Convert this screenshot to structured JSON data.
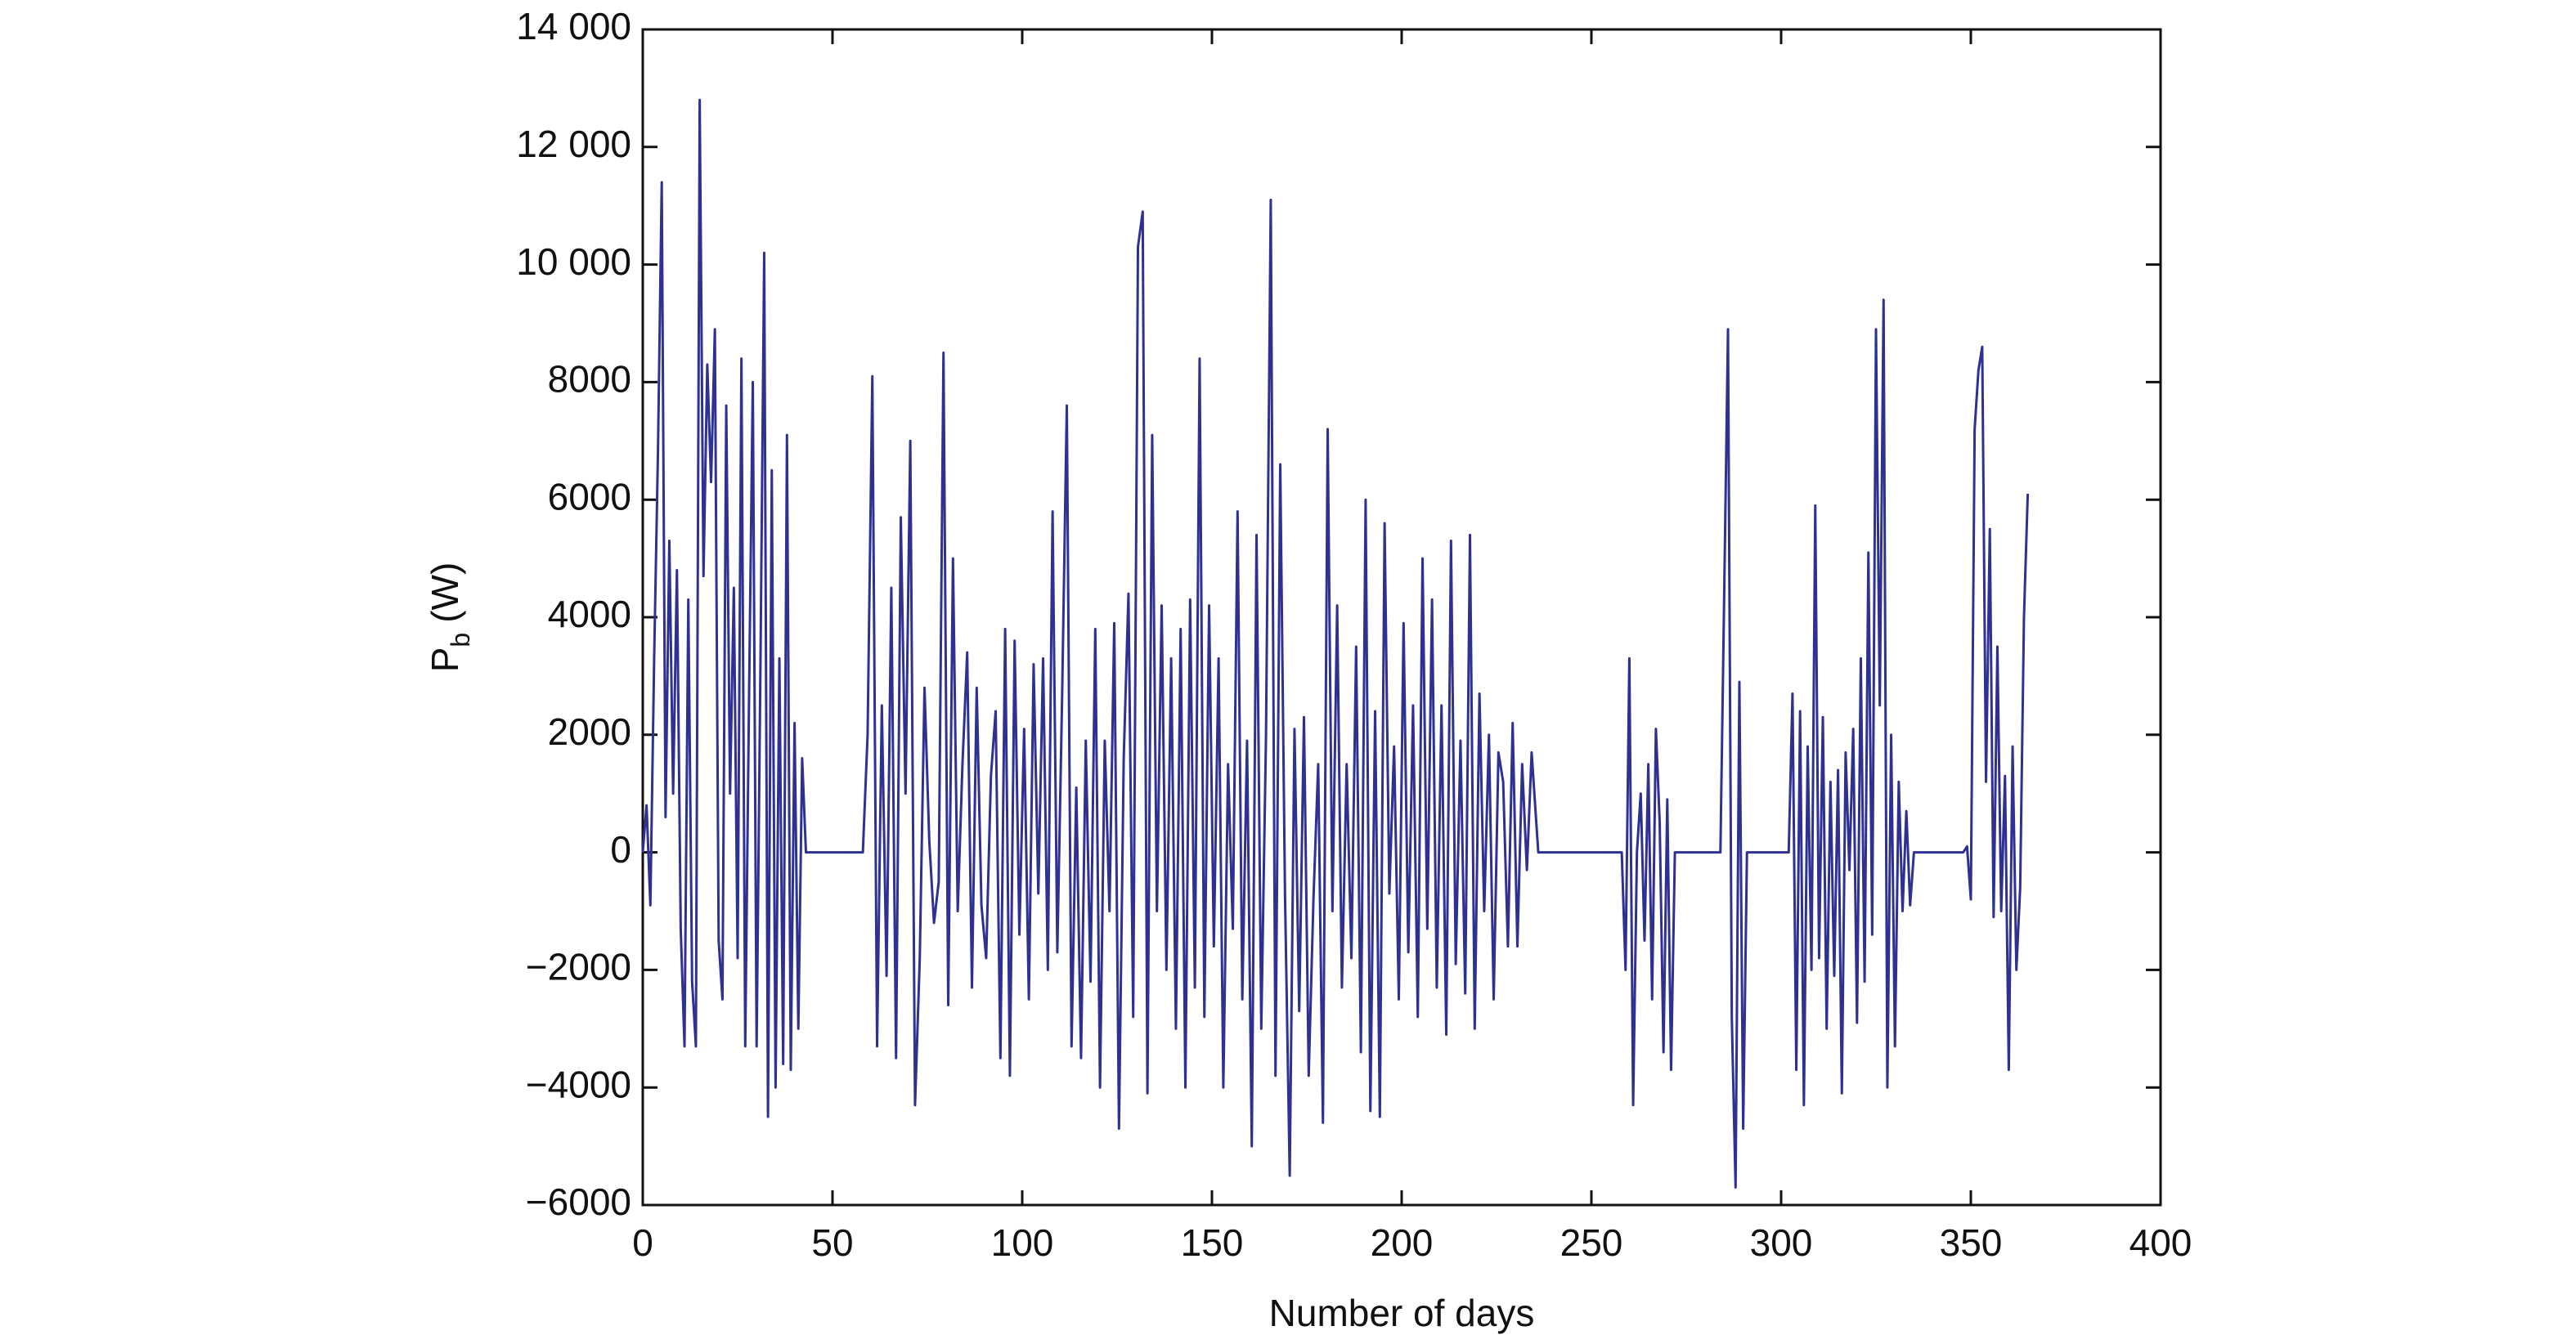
{
  "chart_data": {
    "type": "line",
    "xlabel": "Number of days",
    "ylabel": {
      "main": "P",
      "sub": "b",
      "unit": "(W)"
    },
    "xlim": [
      0,
      400
    ],
    "xticks": [
      0,
      50,
      100,
      150,
      200,
      250,
      300,
      350,
      400
    ],
    "ylim": [
      -6000,
      14000
    ],
    "yticks": [
      {
        "value": -6000,
        "label": "−6000"
      },
      {
        "value": -4000,
        "label": "−4000"
      },
      {
        "value": -2000,
        "label": "−2000"
      },
      0,
      2000,
      4000,
      6000,
      8000,
      {
        "value": 10000,
        "label": "10 000"
      },
      {
        "value": 12000,
        "label": "12 000"
      },
      {
        "value": 14000,
        "label": "14 000"
      }
    ],
    "grid": false,
    "x": [
      0,
      1,
      2,
      3,
      4,
      5,
      6,
      7,
      8,
      9,
      10,
      11,
      12,
      13,
      14,
      15,
      16,
      17,
      18,
      19,
      20,
      21,
      22,
      23,
      24,
      25,
      26,
      27,
      28,
      29,
      30,
      31,
      32,
      33,
      34,
      35,
      36,
      37,
      38,
      39,
      40,
      41,
      42,
      43,
      58,
      59.25,
      60.5,
      61.75,
      63,
      64.25,
      65.5,
      66.75,
      68,
      69.25,
      70.5,
      71.75,
      73,
      74.25,
      75.5,
      76.75,
      78,
      79.25,
      80.5,
      81.75,
      83,
      84.25,
      85.5,
      86.75,
      88,
      89.25,
      90.5,
      91.75,
      93,
      94.25,
      95.5,
      96.75,
      98,
      99.25,
      100.5,
      101.75,
      103,
      104.25,
      105.5,
      106.75,
      108,
      109.25,
      110.5,
      111.75,
      113,
      114.25,
      115.5,
      116.75,
      118,
      119.25,
      120.5,
      121.75,
      123,
      124.25,
      125.5,
      126.75,
      128,
      129.25,
      130.5,
      131.75,
      133,
      134.25,
      135.5,
      136.75,
      138,
      139.25,
      140.5,
      141.75,
      143,
      144.25,
      145.5,
      146.75,
      148,
      149.25,
      150.5,
      151.75,
      153,
      154.25,
      155.5,
      156.75,
      158,
      159.25,
      160.5,
      161.75,
      163,
      164.25,
      165.5,
      166.75,
      168,
      169.25,
      170.5,
      171.75,
      173,
      174.25,
      175.5,
      176.75,
      178,
      179.25,
      180.5,
      181.75,
      183,
      184.25,
      185.5,
      186.75,
      188,
      189.25,
      190.5,
      191.75,
      193,
      194.25,
      195.5,
      196.75,
      198,
      199.25,
      200.5,
      201.75,
      203,
      204.25,
      205.5,
      206.75,
      208,
      209.25,
      210.5,
      211.75,
      213,
      214.25,
      215.5,
      216.75,
      218,
      219.25,
      220.5,
      221.75,
      223,
      224.25,
      225.5,
      226.75,
      228,
      229.25,
      230.5,
      231.75,
      233,
      234.25,
      236,
      258,
      259,
      260,
      261,
      262,
      263,
      264,
      265,
      266,
      267,
      268,
      269,
      270,
      271,
      272,
      284,
      285,
      286,
      287,
      288,
      289,
      290,
      291,
      302,
      303,
      304,
      305,
      306,
      307,
      308,
      309,
      310,
      311,
      312,
      313,
      314,
      315,
      316,
      317,
      318,
      319,
      320,
      321,
      322,
      323,
      324,
      325,
      326,
      327,
      328,
      329,
      330,
      331,
      332,
      333,
      334,
      335,
      348,
      349,
      350,
      351,
      352,
      353,
      354,
      355,
      356,
      357,
      358,
      359,
      360,
      361,
      362,
      363,
      364,
      365
    ],
    "series": [
      {
        "name": "P_b",
        "color": "#2e3192",
        "values": [
          0,
          800,
          -900,
          3300,
          6800,
          11400,
          600,
          5300,
          1000,
          4800,
          -1300,
          -3300,
          4300,
          -2200,
          -3300,
          12800,
          4700,
          8300,
          6300,
          8900,
          -1500,
          -2500,
          7600,
          1000,
          4500,
          -1800,
          8400,
          -3300,
          2600,
          8000,
          -3300,
          3100,
          10200,
          -4500,
          6500,
          -4000,
          3300,
          -3600,
          7100,
          -3700,
          2200,
          -3000,
          1600,
          0,
          0,
          2000,
          8100,
          -3300,
          2500,
          -2100,
          4500,
          -3500,
          5700,
          1000,
          7000,
          -4300,
          -1800,
          2800,
          200,
          -1200,
          -500,
          8500,
          -2600,
          5000,
          -1000,
          1500,
          3400,
          -2300,
          2800,
          -900,
          -1800,
          1300,
          2400,
          -3500,
          3800,
          -3800,
          3600,
          -1400,
          2100,
          -2500,
          3200,
          -700,
          3300,
          -2000,
          5800,
          -1700,
          2600,
          7600,
          -3300,
          1100,
          -3500,
          1900,
          -2200,
          3800,
          -4000,
          1900,
          -1000,
          3900,
          -4700,
          1600,
          4400,
          -2800,
          10300,
          10900,
          -4100,
          7100,
          -1000,
          4200,
          -2000,
          3300,
          -3000,
          3800,
          -4000,
          4300,
          -2300,
          8400,
          -2800,
          4200,
          -1600,
          3300,
          -4000,
          1500,
          -1300,
          5800,
          -2500,
          1900,
          -5000,
          5400,
          -3000,
          2000,
          11100,
          -3800,
          6600,
          -700,
          -5500,
          2100,
          -2700,
          2300,
          -3800,
          -800,
          1500,
          -4600,
          7200,
          -1000,
          4200,
          -2300,
          1500,
          -1800,
          3500,
          -3400,
          6000,
          -4400,
          2400,
          -4500,
          5600,
          -700,
          1800,
          -2500,
          3900,
          -1700,
          2500,
          -2800,
          5000,
          -1300,
          4300,
          -2300,
          2500,
          -3100,
          5300,
          -1900,
          1900,
          -2400,
          5400,
          -3000,
          2700,
          -1000,
          2000,
          -2500,
          1700,
          1200,
          -1600,
          2200,
          -1600,
          1500,
          -300,
          1700,
          0,
          0,
          -2000,
          3300,
          -4300,
          0,
          1000,
          -1500,
          1500,
          -2500,
          2100,
          500,
          -3400,
          900,
          -3700,
          0,
          0,
          4400,
          8900,
          -2800,
          -5700,
          2900,
          -4700,
          0,
          0,
          2700,
          -3700,
          2400,
          -4300,
          1800,
          -2000,
          5900,
          -1800,
          2300,
          -3000,
          1200,
          -2100,
          1400,
          -4100,
          1700,
          -300,
          2100,
          -2900,
          3300,
          -2200,
          5100,
          -1400,
          8900,
          2500,
          9400,
          -4000,
          2000,
          -3300,
          1200,
          -1000,
          700,
          -900,
          0,
          0,
          100,
          -800,
          7200,
          8200,
          8600,
          1200,
          5500,
          -1100,
          3500,
          -1000,
          1300,
          -3700,
          1800,
          -2000,
          -600,
          4000,
          6100
        ]
      }
    ]
  }
}
